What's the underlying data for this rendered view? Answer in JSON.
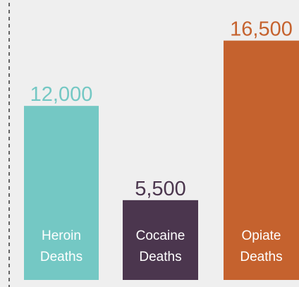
{
  "chart_data": {
    "type": "bar",
    "categories": [
      "Heroin Deaths",
      "Cocaine Deaths",
      "Opiate Deaths"
    ],
    "category_lines": [
      [
        "Heroin",
        "Deaths"
      ],
      [
        "Cocaine",
        "Deaths"
      ],
      [
        "Opiate",
        "Deaths"
      ]
    ],
    "values": [
      12000,
      5500,
      16500
    ],
    "value_labels": [
      "12,000",
      "5,500",
      "16,500"
    ],
    "colors": [
      "#74c8c4",
      "#4b364e",
      "#c5622e"
    ],
    "value_label_colors": [
      "#74c8c4",
      "#4b364e",
      "#c5622e"
    ],
    "ylim": [
      0,
      19300
    ],
    "title": "",
    "xlabel": "",
    "ylabel": "",
    "grid": false,
    "legend": "none"
  }
}
